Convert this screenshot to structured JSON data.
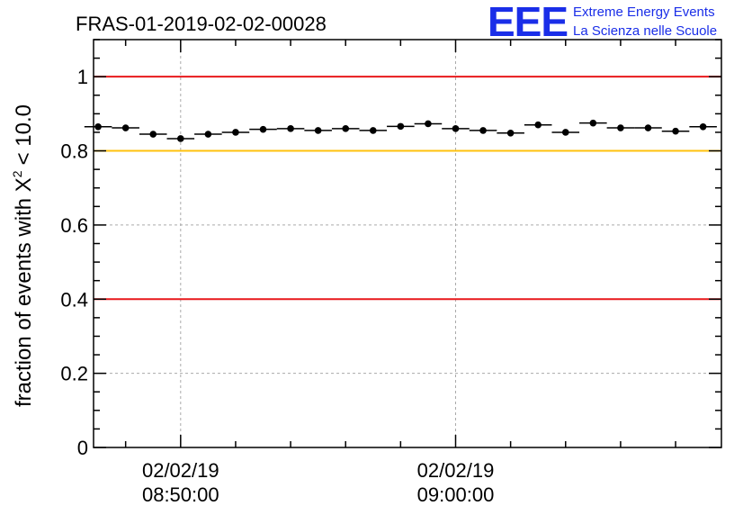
{
  "chart_data": {
    "type": "scatter",
    "title": "FRAS-01-2019-02-02-00028",
    "ylabel_main": "fraction of events with X",
    "ylabel_sup": "2",
    "ylabel_tail": "< 10.0",
    "ylim": [
      0,
      1.1
    ],
    "yticks": [
      0,
      0.2,
      0.4,
      0.6,
      0.8,
      1
    ],
    "ytick_labels": [
      "0",
      "0.2",
      "0.4",
      "0.6",
      "0.8",
      "1"
    ],
    "grid": true,
    "x_axis": {
      "type": "time",
      "range": [
        "08:46:50",
        "09:09:40"
      ],
      "bin_width_sec": 60
    },
    "xticks": [
      {
        "time": "08:50:00",
        "date_label": "02/02/19",
        "time_label": "08:50:00"
      },
      {
        "time": "09:00:00",
        "date_label": "02/02/19",
        "time_label": "09:00:00"
      }
    ],
    "x": [
      "08:47:00",
      "08:48:00",
      "08:49:00",
      "08:50:00",
      "08:51:00",
      "08:52:00",
      "08:53:00",
      "08:54:00",
      "08:55:00",
      "08:56:00",
      "08:57:00",
      "08:58:00",
      "08:59:00",
      "09:00:00",
      "09:01:00",
      "09:02:00",
      "09:03:00",
      "09:04:00",
      "09:05:00",
      "09:06:00",
      "09:07:00",
      "09:08:00",
      "09:09:00"
    ],
    "values": [
      0.865,
      0.862,
      0.845,
      0.833,
      0.845,
      0.85,
      0.858,
      0.86,
      0.855,
      0.86,
      0.855,
      0.866,
      0.873,
      0.86,
      0.855,
      0.848,
      0.87,
      0.85,
      0.875,
      0.862,
      0.862,
      0.853,
      0.865
    ],
    "reference_lines": [
      {
        "y": 1.0,
        "color": "#e8191c"
      },
      {
        "y": 0.8,
        "color": "#ffc20e"
      },
      {
        "y": 0.4,
        "color": "#e8191c"
      }
    ]
  },
  "logo": {
    "text": "EEE",
    "line1": "Extreme Energy Events",
    "line2": "La Scienza nelle Scuole",
    "color": "#1a2ee8"
  }
}
